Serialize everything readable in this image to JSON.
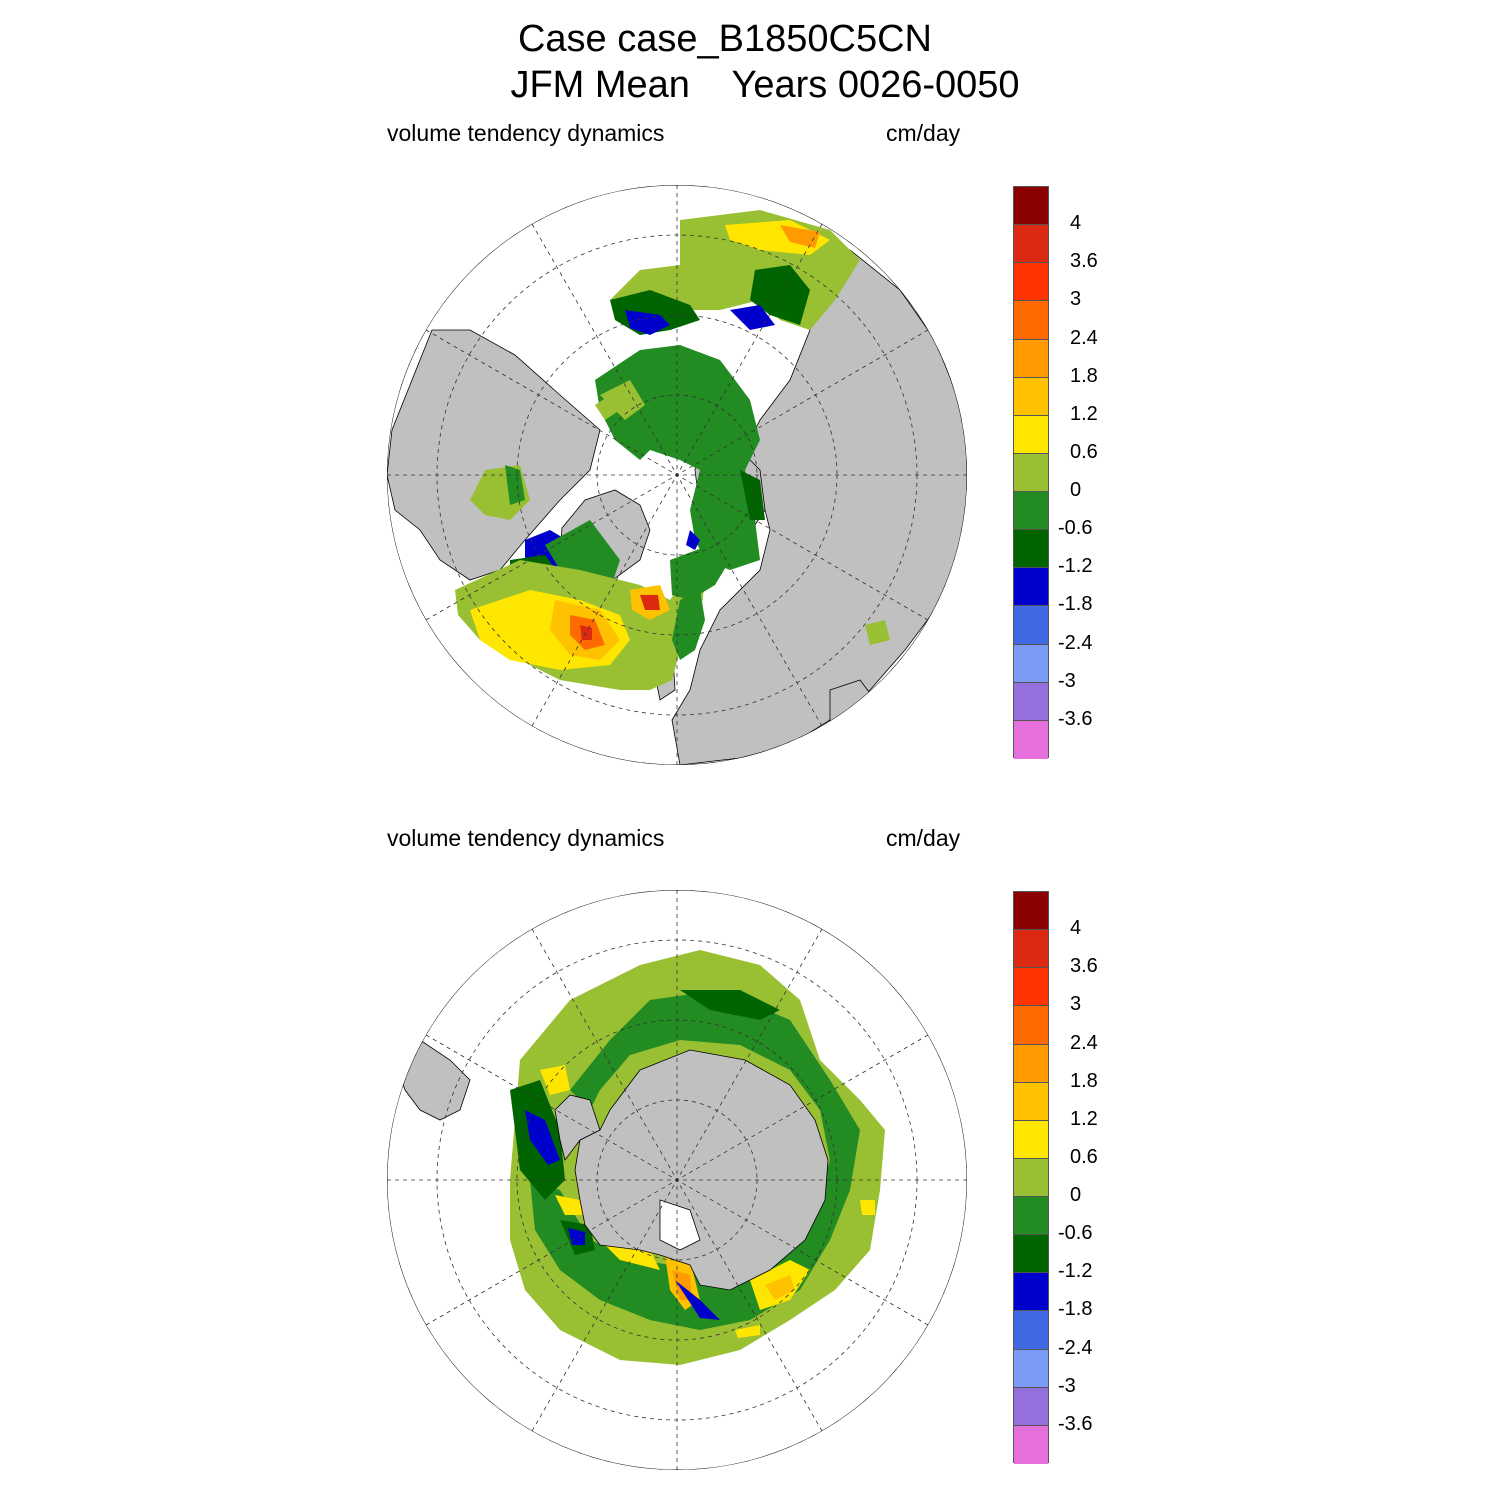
{
  "title": {
    "line1": "Case case_B1850C5CN",
    "line2": "JFM Mean    Years 0026-0050"
  },
  "panels": [
    {
      "variable": "volume tendency dynamics",
      "units": "cm/day",
      "hemisphere": "north"
    },
    {
      "variable": "volume tendency dynamics",
      "units": "cm/day",
      "hemisphere": "south"
    }
  ],
  "colorbar": {
    "labels": [
      "4",
      "3.6",
      "3",
      "2.4",
      "1.8",
      "1.2",
      "0.6",
      "0",
      "-0.6",
      "-1.2",
      "-1.8",
      "-2.4",
      "-3",
      "-3.6"
    ],
    "colors": [
      "#8b0000",
      "#dc2a12",
      "#ff3300",
      "#ff6a00",
      "#ff9a00",
      "#ffc200",
      "#ffe600",
      "#99bf33",
      "#228b22",
      "#006400",
      "#0000cd",
      "#4169e1",
      "#7a9cf5",
      "#9370db",
      "#e56fdb"
    ]
  },
  "map_colors": {
    "land": "#c0c0c0",
    "ocean_no_data": "#ffffff"
  }
}
